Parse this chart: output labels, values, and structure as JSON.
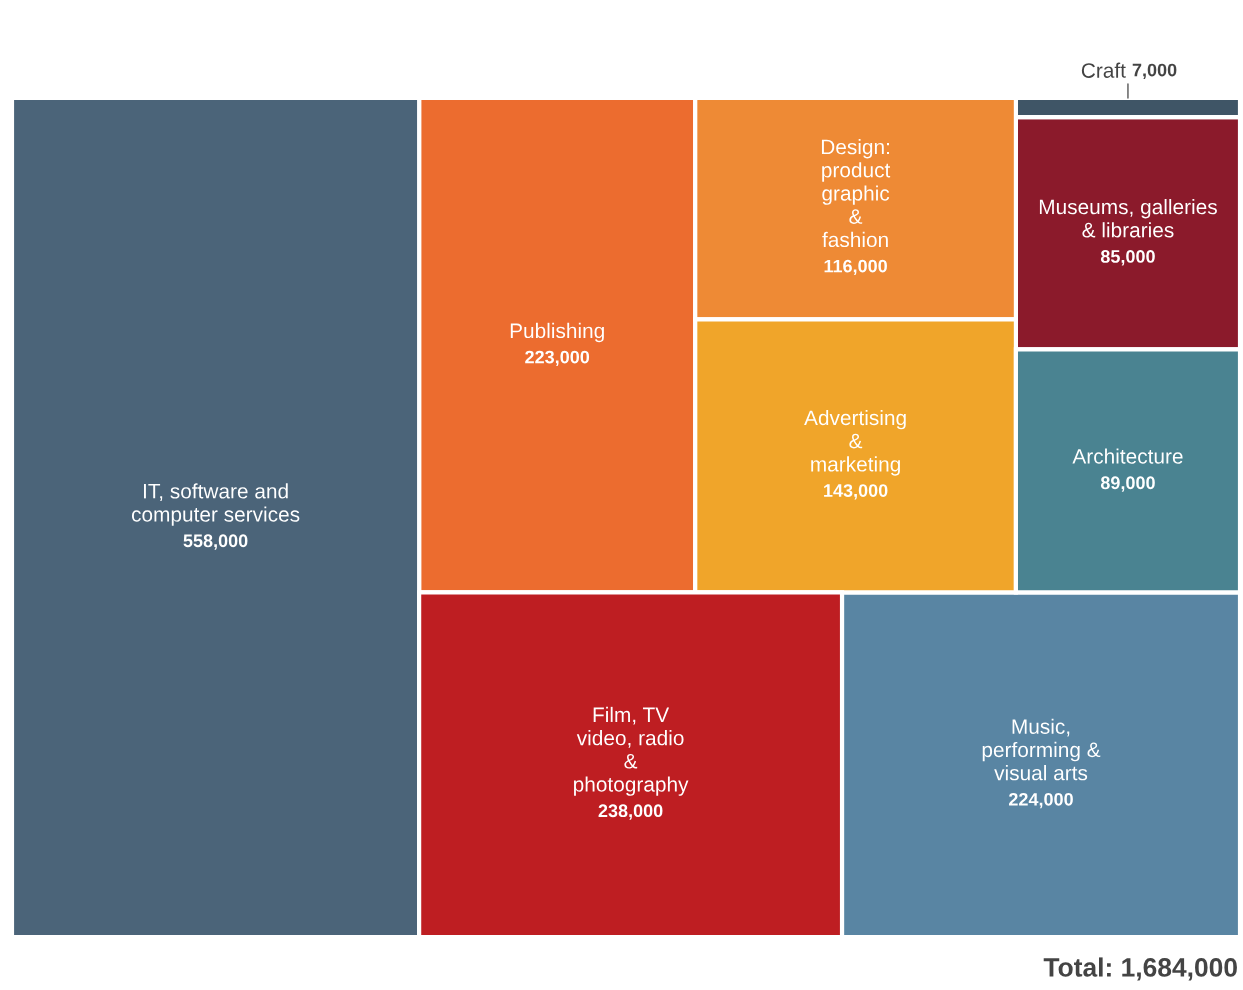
{
  "chart_data": {
    "type": "other",
    "categories": [
      "Museums, galleries\n& libraries",
      "Publishing",
      "Music,\nperforming &\nvisual arts",
      "IT, software and\ncomputer services",
      "Craft",
      "Design:\nproduct\ngraphic\n&\nfashion",
      "Advertising\n&\nmarketing",
      "Architecture",
      "Film, TV\nvideo, radio\n&\nphotography"
    ],
    "values": [
      85000,
      223000,
      224000,
      558000,
      7000,
      116000,
      143000,
      89000,
      238000
    ],
    "colors": [
      "#8b1a2b",
      "#ec6c2f",
      "#5985a3",
      "#4b6479",
      "#3f5566",
      "#ee8a35",
      "#f0a52a",
      "#4a8391",
      "#be1e22"
    ],
    "value_labels": [
      "85,000",
      "223,000",
      "224,000",
      "558,000",
      "7,000",
      "116,000",
      "143,000",
      "89,000",
      "238,000"
    ],
    "annotations": [
      "Total: 1,684,000"
    ]
  }
}
